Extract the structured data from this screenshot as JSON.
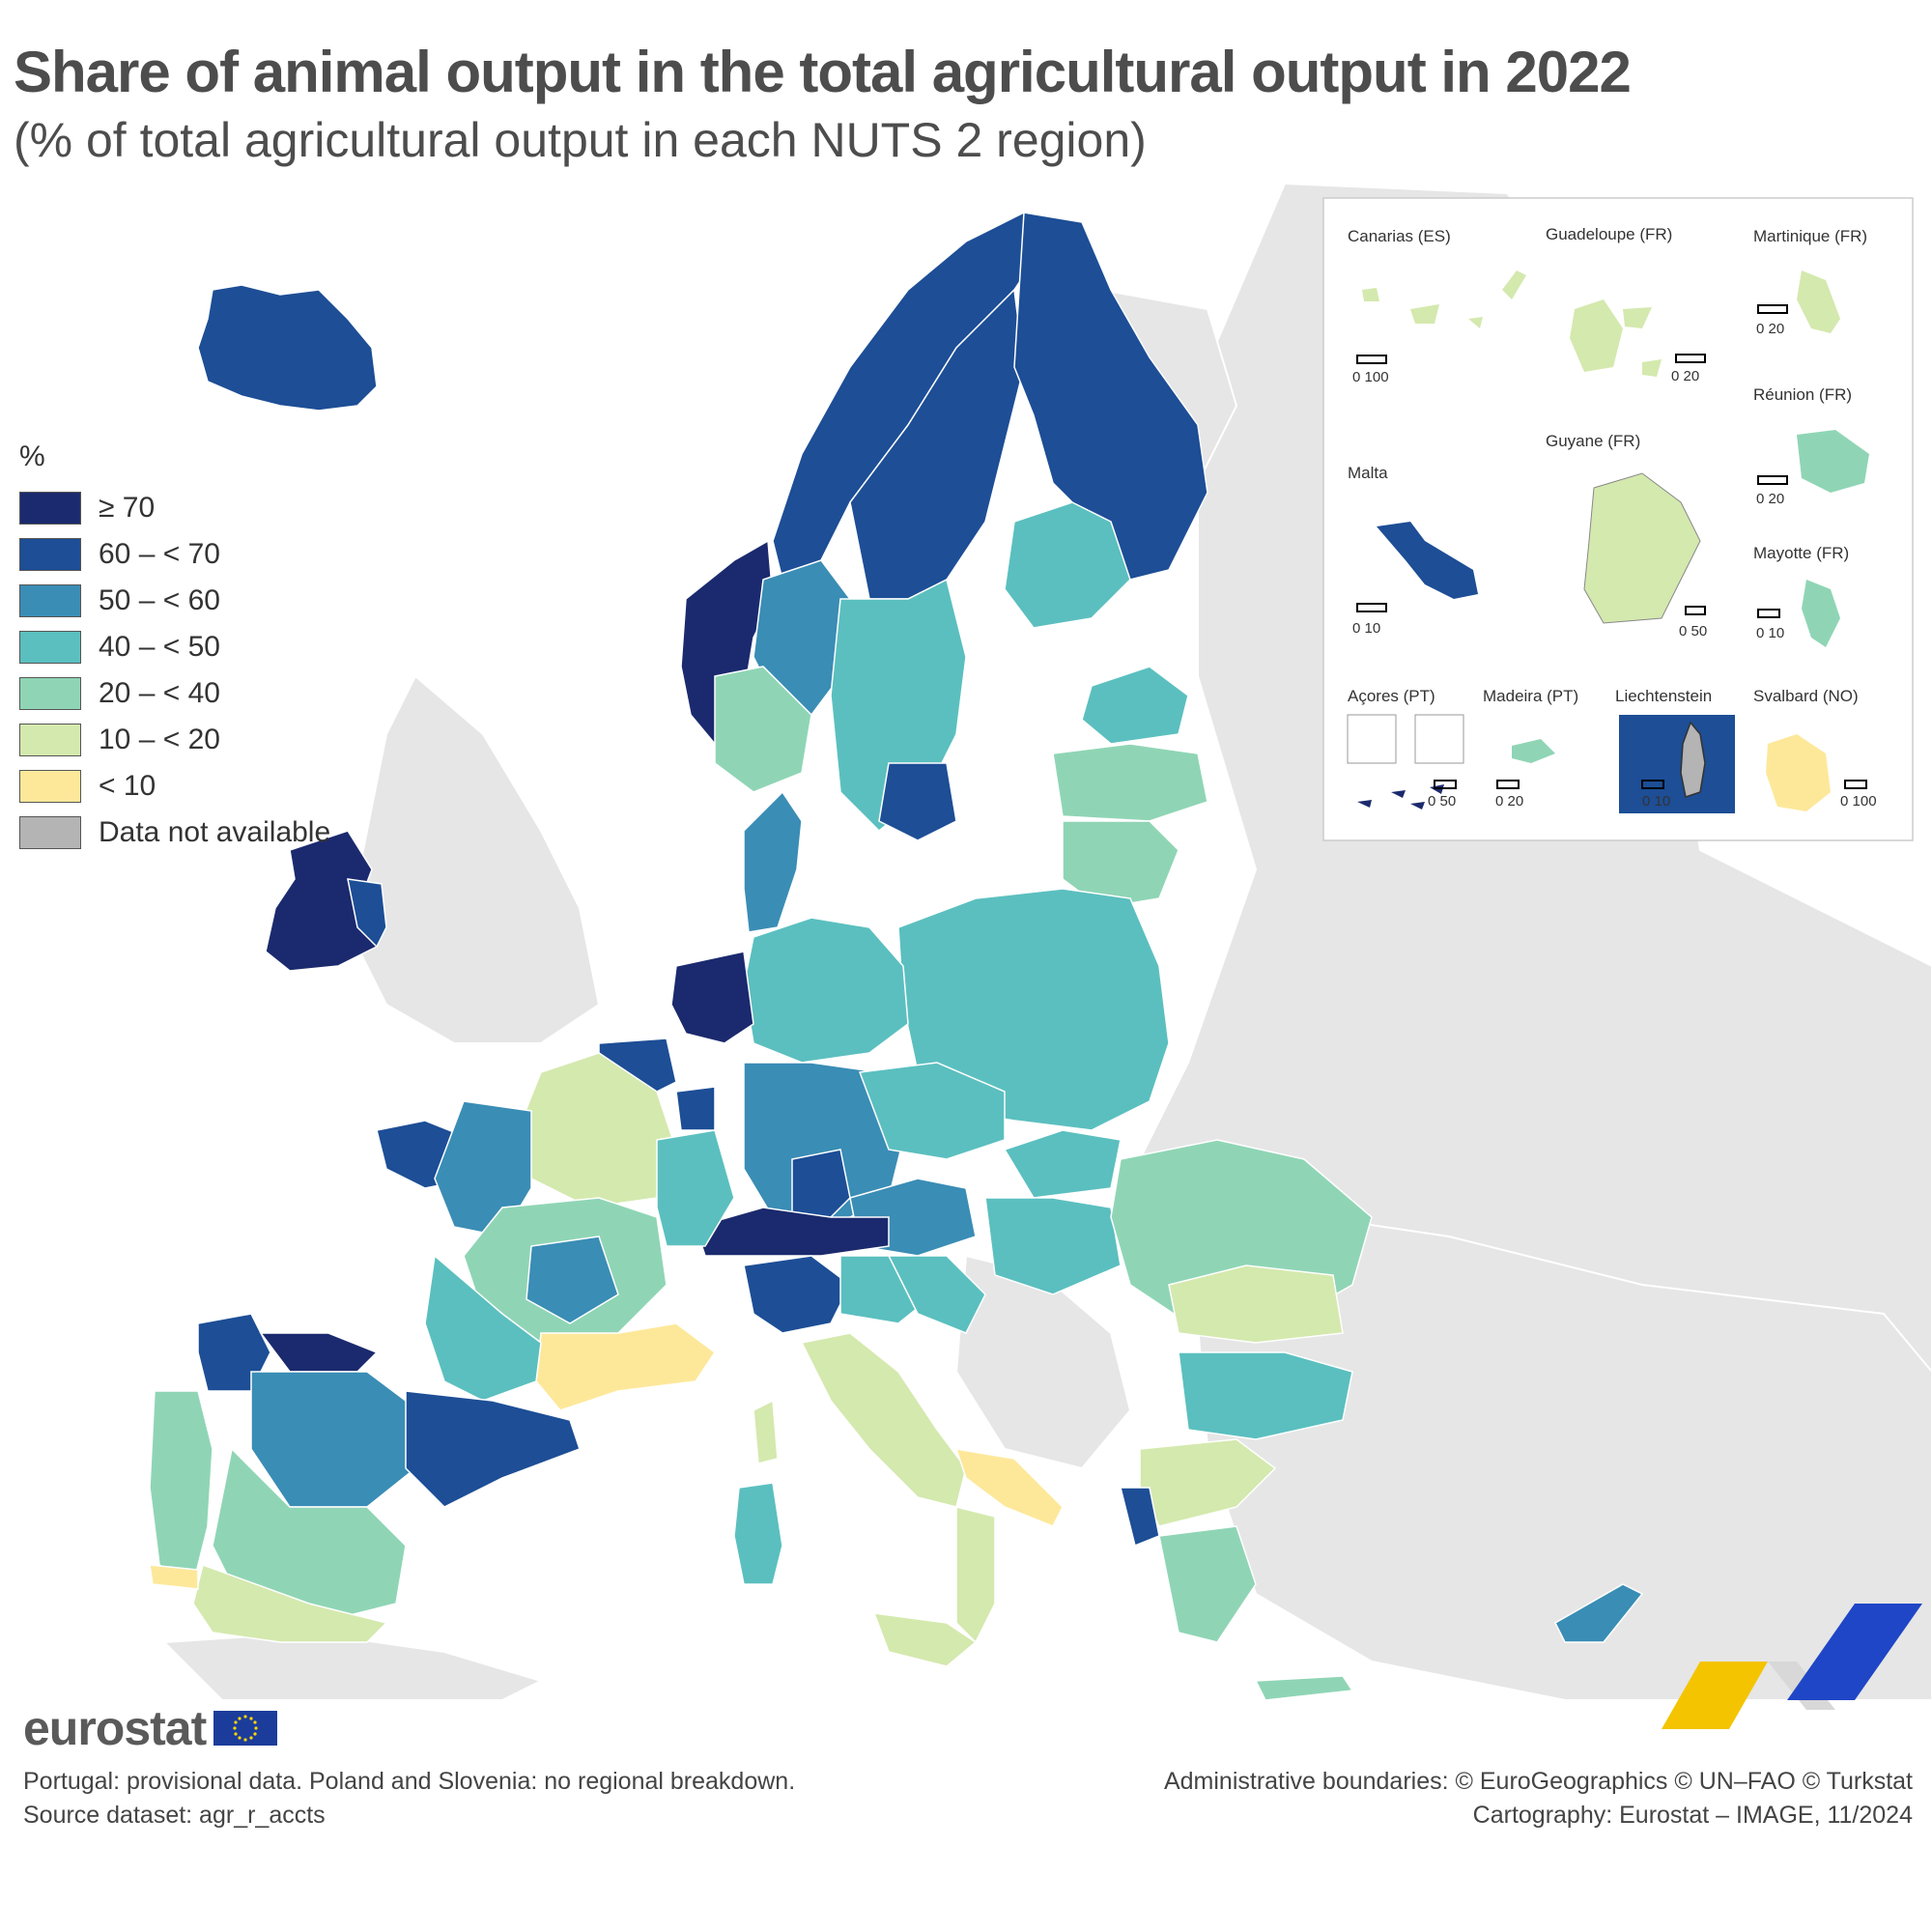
{
  "title": "Share of animal output in the total agricultural output in 2022",
  "subtitle": "(% of total agricultural output in each NUTS 2 region)",
  "legend": {
    "unit": "%",
    "classes": [
      {
        "label": "≥ 70",
        "color": "#1b2a6e"
      },
      {
        "label": "60 – < 70",
        "color": "#1d4e96"
      },
      {
        "label": "50 – < 60",
        "color": "#3a8db5"
      },
      {
        "label": "40 – < 50",
        "color": "#5bbfbf"
      },
      {
        "label": "20 – < 40",
        "color": "#8fd5b5"
      },
      {
        "label": "10 – < 20",
        "color": "#d4e9ae"
      },
      {
        "label": "< 10",
        "color": "#fde89a"
      },
      {
        "label": "Data not available",
        "color": "#b4b4b4"
      }
    ]
  },
  "insets": {
    "canarias": {
      "title": "Canarias (ES)",
      "scale": "0   100"
    },
    "guadeloupe": {
      "title": "Guadeloupe (FR)",
      "scale": "0  20"
    },
    "martinique": {
      "title": "Martinique (FR)",
      "scale": "0  20"
    },
    "reunion": {
      "title": "Réunion (FR)",
      "scale": "0  20"
    },
    "guyane": {
      "title": "Guyane (FR)",
      "scale": "0 50"
    },
    "malta": {
      "title": "Malta",
      "scale": "0   10"
    },
    "mayotte": {
      "title": "Mayotte (FR)",
      "scale": "0  10"
    },
    "acores": {
      "title": "Açores (PT)",
      "scale": "0   50"
    },
    "madeira": {
      "title": "Madeira (PT)",
      "scale": "0  20"
    },
    "liechtenstein": {
      "title": "Liechtenstein",
      "scale": "0   10"
    },
    "svalbard": {
      "title": "Svalbard (NO)",
      "scale": "0 100"
    }
  },
  "footer": {
    "logo_text": "eurostat",
    "note1": "Portugal: provisional data. Poland and Slovenia: no regional breakdown.",
    "note2": "Source dataset: agr_r_accts",
    "credit1": "Administrative boundaries: © EuroGeographics © UN–FAO © Turkstat",
    "credit2": "Cartography: Eurostat – IMAGE, 11/2024"
  }
}
